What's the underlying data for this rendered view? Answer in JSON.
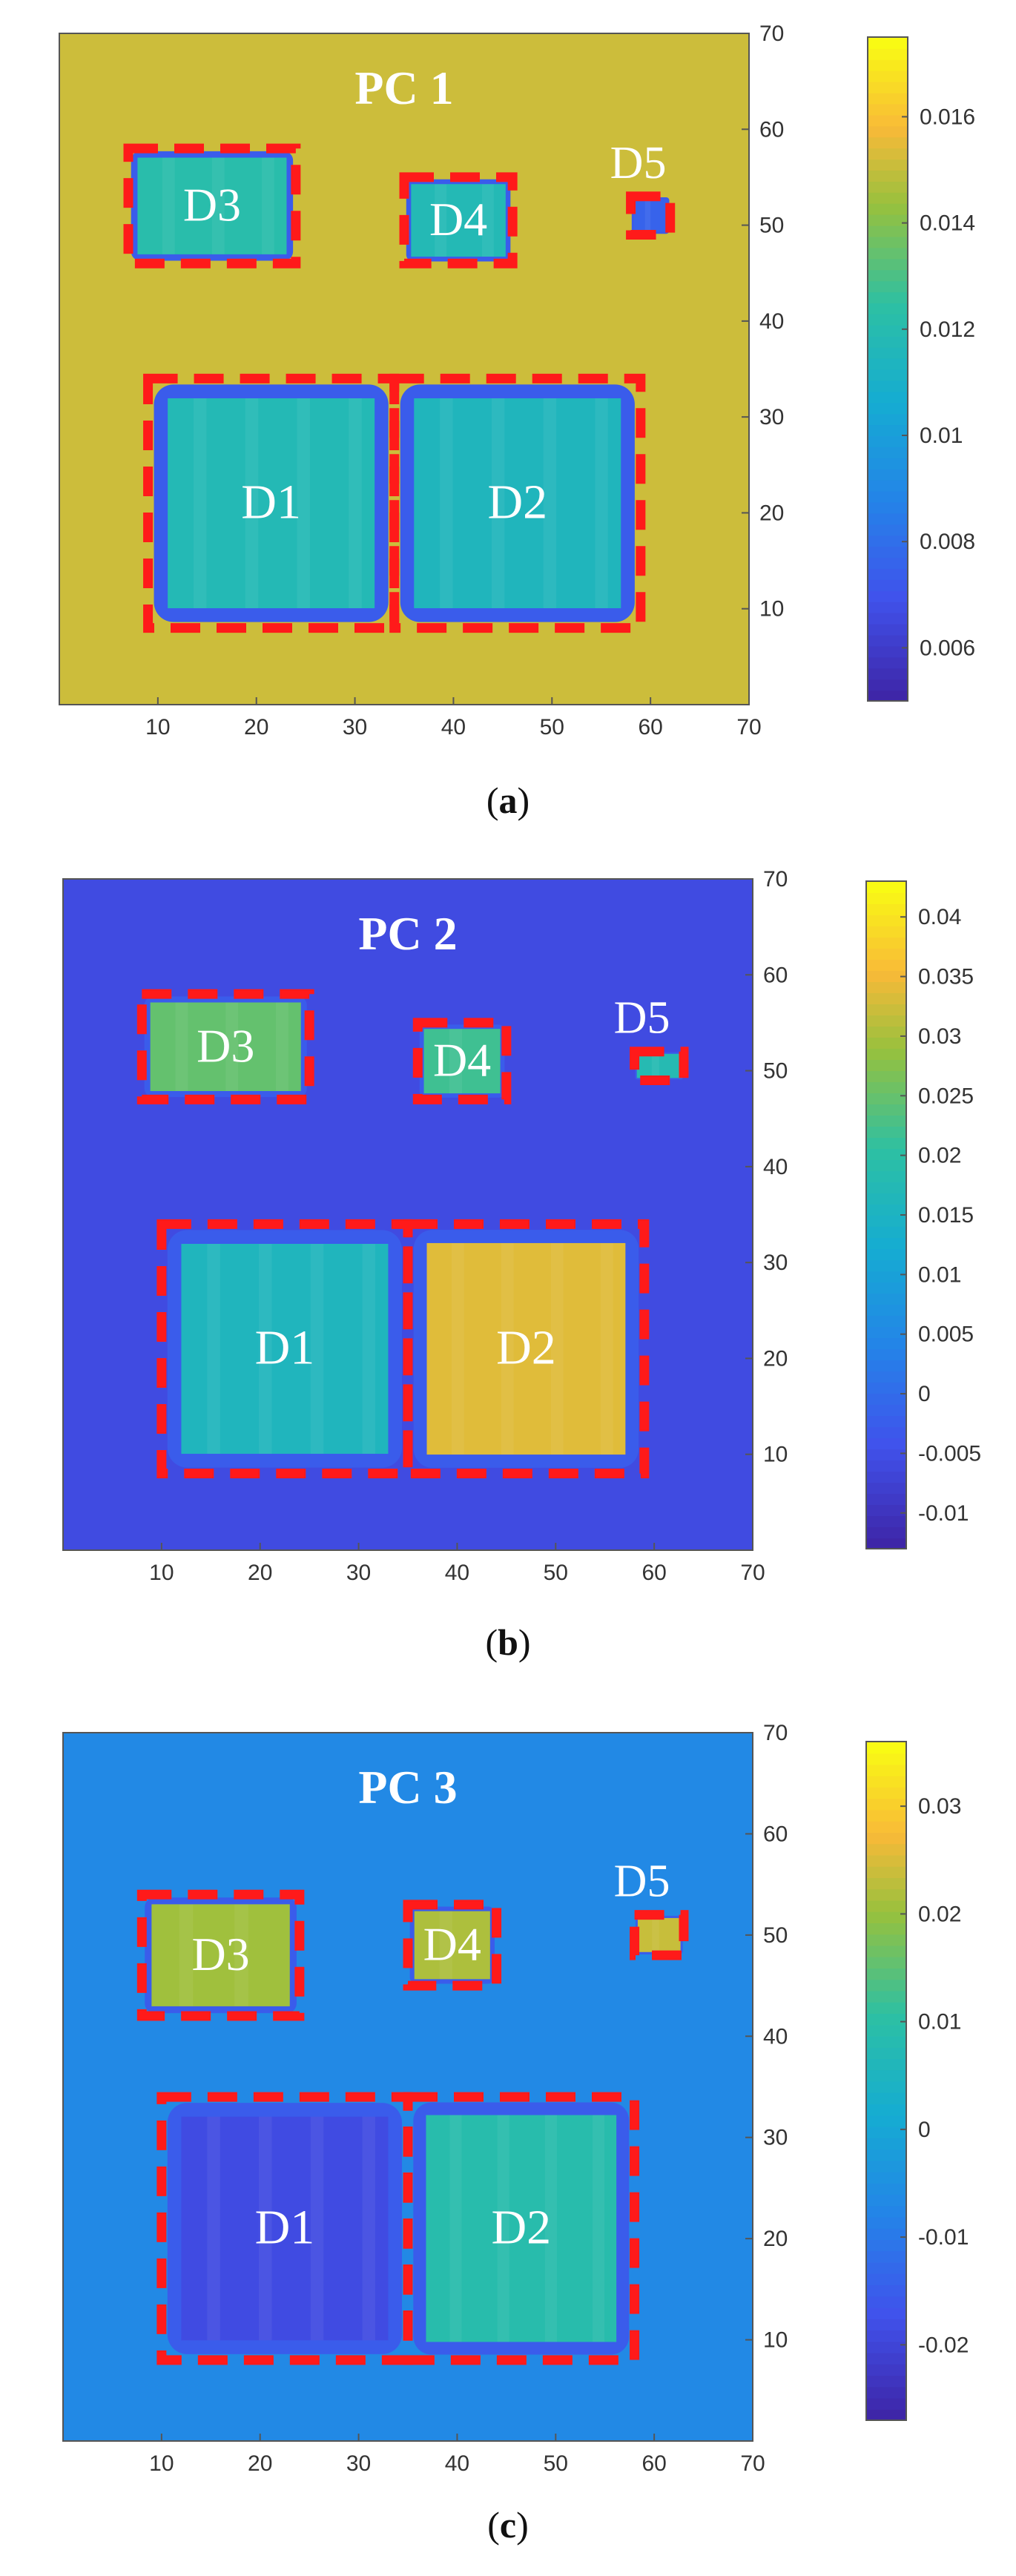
{
  "chart_data": [
    {
      "type": "heatmap",
      "title": "PC 1",
      "panel_label_open": "(",
      "panel_label_letter": "a",
      "panel_label_close": ")",
      "xlim": [
        0,
        70
      ],
      "ylim": [
        0,
        70
      ],
      "x_ticks": [
        "10",
        "20",
        "30",
        "40",
        "50",
        "60",
        "70"
      ],
      "y_ticks": [
        "10",
        "20",
        "30",
        "40",
        "50",
        "60",
        "70"
      ],
      "colormap": "parula",
      "colorbar": {
        "min": 0.005,
        "max": 0.0175,
        "ticks": [
          "0.006",
          "0.008",
          "0.01",
          "0.012",
          "0.014",
          "0.016"
        ],
        "tick_values": [
          0.006,
          0.008,
          0.01,
          0.012,
          0.014,
          0.016
        ]
      },
      "background_value": 0.0152,
      "regions": [
        {
          "label": "D1",
          "x": [
            9,
            34
          ],
          "y": [
            8,
            34
          ],
          "value": 0.0118
        },
        {
          "label": "D2",
          "x": [
            34,
            59
          ],
          "y": [
            8,
            34
          ],
          "value": 0.0115
        },
        {
          "label": "D3",
          "x": [
            7,
            24
          ],
          "y": [
            46,
            58
          ],
          "value": 0.0122
        },
        {
          "label": "D4",
          "x": [
            35,
            46
          ],
          "y": [
            46,
            55
          ],
          "value": 0.0118
        },
        {
          "label": "D5",
          "x": [
            58,
            62
          ],
          "y": [
            49,
            53
          ],
          "value": 0.0075
        }
      ]
    },
    {
      "type": "heatmap",
      "title": "PC 2",
      "panel_label_open": "(",
      "panel_label_letter": "b",
      "panel_label_close": ")",
      "xlim": [
        0,
        70
      ],
      "ylim": [
        0,
        70
      ],
      "x_ticks": [
        "10",
        "20",
        "30",
        "40",
        "50",
        "60",
        "70"
      ],
      "y_ticks": [
        "10",
        "20",
        "30",
        "40",
        "50",
        "60",
        "70"
      ],
      "colormap": "parula",
      "colorbar": {
        "min": -0.013,
        "max": 0.043,
        "ticks": [
          "-0.01",
          "-0.005",
          "0",
          "0.005",
          "0.01",
          "0.015",
          "0.02",
          "0.025",
          "0.03",
          "0.035",
          "0.04"
        ],
        "tick_values": [
          -0.01,
          -0.005,
          0,
          0.005,
          0.01,
          0.015,
          0.02,
          0.025,
          0.03,
          0.035,
          0.04
        ]
      },
      "background_value": -0.006,
      "regions": [
        {
          "label": "D1",
          "x": [
            10,
            35
          ],
          "y": [
            8,
            34
          ],
          "value": 0.016
        },
        {
          "label": "D2",
          "x": [
            35,
            59
          ],
          "y": [
            8,
            34
          ],
          "value": 0.034
        },
        {
          "label": "D3",
          "x": [
            8,
            25
          ],
          "y": [
            47,
            58
          ],
          "value": 0.025
        },
        {
          "label": "D4",
          "x": [
            36,
            45
          ],
          "y": [
            47,
            55
          ],
          "value": 0.022
        },
        {
          "label": "D5",
          "x": [
            58,
            63
          ],
          "y": [
            49,
            52
          ],
          "value": 0.018
        }
      ]
    },
    {
      "type": "heatmap",
      "title": "PC 3",
      "panel_label_open": "(",
      "panel_label_letter": "c",
      "panel_label_close": ")",
      "xlim": [
        0,
        70
      ],
      "ylim": [
        0,
        70
      ],
      "x_ticks": [
        "10",
        "20",
        "30",
        "40",
        "50",
        "60",
        "70"
      ],
      "y_ticks": [
        "10",
        "20",
        "30",
        "40",
        "50",
        "60",
        "70"
      ],
      "colormap": "parula",
      "colorbar": {
        "min": -0.027,
        "max": 0.036,
        "ticks": [
          "-0.02",
          "-0.01",
          "0",
          "0.01",
          "0.02",
          "0.03"
        ],
        "tick_values": [
          -0.02,
          -0.01,
          0,
          0.01,
          0.02,
          0.03
        ]
      },
      "background_value": -0.007,
      "regions": [
        {
          "label": "D1",
          "x": [
            10,
            35
          ],
          "y": [
            8,
            34
          ],
          "value": -0.019
        },
        {
          "label": "D2",
          "x": [
            35,
            58
          ],
          "y": [
            8,
            34
          ],
          "value": 0.009
        },
        {
          "label": "D3",
          "x": [
            8,
            24
          ],
          "y": [
            42,
            54
          ],
          "value": 0.021
        },
        {
          "label": "D4",
          "x": [
            35,
            44
          ],
          "y": [
            45,
            53
          ],
          "value": 0.022
        },
        {
          "label": "D5",
          "x": [
            58,
            63
          ],
          "y": [
            48,
            52
          ],
          "value": 0.024
        }
      ]
    }
  ],
  "colors": {
    "box": "#ff1a1a",
    "label": "#ffffff"
  }
}
